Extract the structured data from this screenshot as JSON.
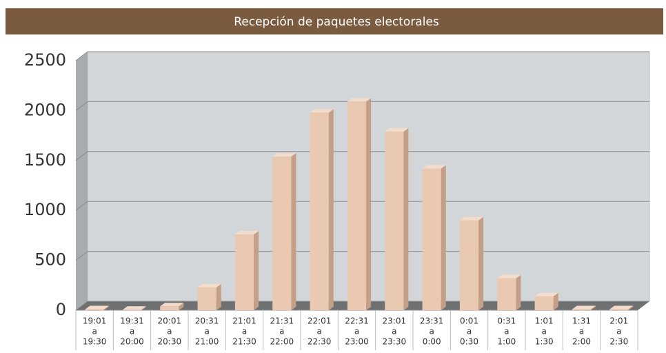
{
  "chart_data": {
    "type": "bar3d",
    "title": "Recepción de paquetes electorales",
    "categories": [
      [
        "19:01",
        "a",
        "19:30"
      ],
      [
        "19:31",
        "a",
        "20:00"
      ],
      [
        "20:01",
        "a",
        "20:30"
      ],
      [
        "20:31",
        "a",
        "21:00"
      ],
      [
        "21:01",
        "a",
        "21:30"
      ],
      [
        "21:31",
        "a",
        "22:00"
      ],
      [
        "22:01",
        "a",
        "22:30"
      ],
      [
        "22:31",
        "a",
        "23:00"
      ],
      [
        "23:01",
        "a",
        "23:30"
      ],
      [
        "23:31",
        "a",
        "0:00"
      ],
      [
        "0:01",
        "a",
        "0:30"
      ],
      [
        "0:31",
        "a",
        "1:00"
      ],
      [
        "1:01",
        "a",
        "1:30"
      ],
      [
        "1:31",
        "a",
        "2:00"
      ],
      [
        "2:01",
        "a",
        "2:30"
      ]
    ],
    "values": [
      10,
      5,
      40,
      230,
      760,
      1540,
      1980,
      2090,
      1790,
      1420,
      900,
      320,
      140,
      10,
      10
    ],
    "color": "#e9c9b1",
    "ylim": [
      0,
      2500
    ],
    "yticks": [
      0,
      500,
      1000,
      1500,
      2000,
      2500
    ],
    "grid": true
  }
}
